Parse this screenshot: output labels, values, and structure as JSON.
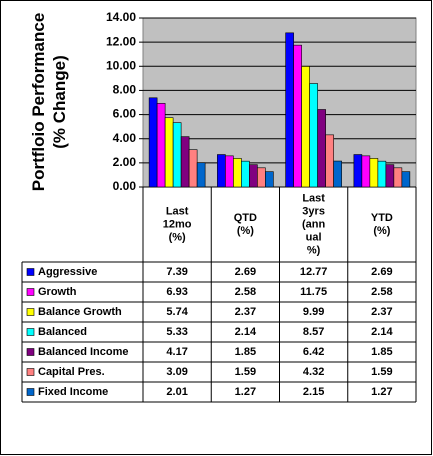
{
  "chart_data": {
    "type": "bar",
    "y_label_lines": [
      "Portfloio Performance",
      "(% Change)"
    ],
    "categories": [
      "Last\n12mo\n(%)",
      "QTD\n(%)",
      "Last\n3yrs\n(ann\nual\n%)",
      "YTD\n(%)"
    ],
    "series": [
      {
        "name": "Aggressive",
        "color": "#0000ff",
        "values": [
          7.39,
          2.69,
          12.77,
          2.69
        ]
      },
      {
        "name": "Growth",
        "color": "#ff00ff",
        "values": [
          6.93,
          2.58,
          11.75,
          2.58
        ]
      },
      {
        "name": "Balance Growth",
        "color": "#ffff00",
        "values": [
          5.74,
          2.37,
          9.99,
          2.37
        ]
      },
      {
        "name": "Balanced",
        "color": "#00ffff",
        "values": [
          5.33,
          2.14,
          8.57,
          2.14
        ]
      },
      {
        "name": "Balanced Income",
        "color": "#800080",
        "values": [
          4.17,
          1.85,
          6.42,
          1.85
        ]
      },
      {
        "name": "Capital Pres.",
        "color": "#ff8080",
        "values": [
          3.09,
          1.59,
          4.32,
          1.59
        ]
      },
      {
        "name": "Fixed Income",
        "color": "#0066cc",
        "values": [
          2.01,
          1.27,
          2.15,
          1.27
        ]
      }
    ],
    "ylim": [
      0,
      14
    ],
    "yticks": [
      {
        "value": 0,
        "label": "0.00"
      },
      {
        "value": 2,
        "label": "2.00"
      },
      {
        "value": 4,
        "label": "4.00"
      },
      {
        "value": 6,
        "label": "6.00"
      },
      {
        "value": 8,
        "label": "8.00"
      },
      {
        "value": 10,
        "label": "10.00"
      },
      {
        "value": 12,
        "label": "12.00"
      },
      {
        "value": 14,
        "label": "14.00"
      }
    ],
    "grid": true,
    "plot_background": "#c0c0c0"
  }
}
